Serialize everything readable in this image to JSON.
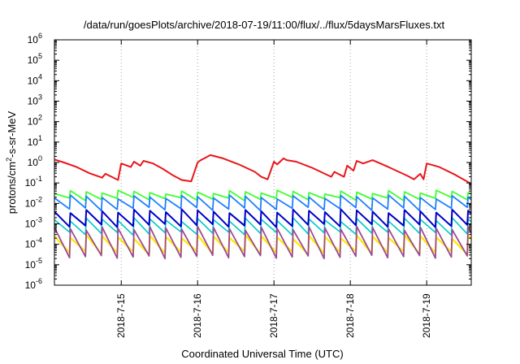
{
  "chart_data": {
    "type": "line",
    "title": "/data/run/goesPlots/archive/2018-07-19/11:00/flux/../flux/5daysMarsFluxes.txt",
    "xlabel": "Coordinated Universal Time (UTC)",
    "ylabel": {
      "prefix": "protons/cm",
      "sup": "2",
      "suffix": "-s-sr-MeV"
    },
    "yscale": "log",
    "ylim_exp": [
      -6,
      6
    ],
    "y_ticks": [
      {
        "base": "10",
        "exp": "-6"
      },
      {
        "base": "10",
        "exp": "-5"
      },
      {
        "base": "10",
        "exp": "-4"
      },
      {
        "base": "10",
        "exp": "-3"
      },
      {
        "base": "10",
        "exp": "-2"
      },
      {
        "base": "10",
        "exp": "-1"
      },
      {
        "base": "10",
        "exp": "0"
      },
      {
        "base": "10",
        "exp": "1"
      },
      {
        "base": "10",
        "exp": "2"
      },
      {
        "base": "10",
        "exp": "3"
      },
      {
        "base": "10",
        "exp": "4"
      },
      {
        "base": "10",
        "exp": "5"
      },
      {
        "base": "10",
        "exp": "6"
      }
    ],
    "x_range": [
      "2018-07-14 03:00",
      "2018-07-19 14:00"
    ],
    "x_ticks": [
      "2018-7-15",
      "2018-7-16",
      "2018-7-17",
      "2018-7-18",
      "2018-7-19"
    ],
    "x_tick_values": [
      "2018-07-15",
      "2018-07-16",
      "2018-07-17",
      "2018-07-18",
      "2018-07-19"
    ],
    "grid": "vertical dotted at x ticks",
    "series": [
      {
        "color": "#e8161b",
        "width": 2.0,
        "x": [
          "2018-07-14 03:00",
          "2018-07-14 06:00",
          "2018-07-14 10:00",
          "2018-07-14 14:00",
          "2018-07-14 18:00",
          "2018-07-14 19:00",
          "2018-07-14 23:00",
          "2018-07-15 00:00",
          "2018-07-15 03:00",
          "2018-07-15 04:00",
          "2018-07-15 06:00",
          "2018-07-15 07:00",
          "2018-07-15 10:00",
          "2018-07-15 13:00",
          "2018-07-15 16:00",
          "2018-07-15 19:00",
          "2018-07-15 22:00",
          "2018-07-16 00:00",
          "2018-07-16 01:00",
          "2018-07-16 04:00",
          "2018-07-16 08:00",
          "2018-07-16 13:00",
          "2018-07-16 18:00",
          "2018-07-16 20:00",
          "2018-07-16 22:00",
          "2018-07-17 00:00",
          "2018-07-17 01:00",
          "2018-07-17 03:00",
          "2018-07-17 04:00",
          "2018-07-17 07:00",
          "2018-07-17 12:00",
          "2018-07-17 18:00",
          "2018-07-17 19:00",
          "2018-07-17 22:00",
          "2018-07-17 23:00",
          "2018-07-18 01:00",
          "2018-07-18 02:00",
          "2018-07-18 04:00",
          "2018-07-18 07:00",
          "2018-07-18 12:00",
          "2018-07-18 18:00",
          "2018-07-18 20:00",
          "2018-07-18 22:00",
          "2018-07-18 23:00",
          "2018-07-19 00:00",
          "2018-07-19 04:00",
          "2018-07-19 09:00",
          "2018-07-19 14:00"
        ],
        "y": [
          1.4,
          1.0,
          0.6,
          0.3,
          0.18,
          0.28,
          0.14,
          0.9,
          0.6,
          1.1,
          0.7,
          1.2,
          0.9,
          0.5,
          0.25,
          0.14,
          0.12,
          1.0,
          1.3,
          2.3,
          1.6,
          0.8,
          0.35,
          0.2,
          0.15,
          1.1,
          0.8,
          1.6,
          1.3,
          1.1,
          0.55,
          0.2,
          0.35,
          0.2,
          0.7,
          0.4,
          1.2,
          0.9,
          1.3,
          0.6,
          0.22,
          0.15,
          0.28,
          0.15,
          0.9,
          0.6,
          0.25,
          0.09
        ]
      },
      {
        "color": "#3dff2e",
        "width": 1.8,
        "pattern": "sawtooth",
        "period_hours": 5,
        "peak": 0.038,
        "trough": 0.017
      },
      {
        "color": "#1f7fff",
        "width": 1.8,
        "pattern": "sawtooth",
        "period_hours": 5,
        "peak": 0.022,
        "trough": 0.0055
      },
      {
        "color": "#0000c8",
        "width": 2.0,
        "pattern": "sawtooth",
        "period_hours": 5,
        "peak": 0.0045,
        "trough": 0.00085
      },
      {
        "color": "#00c8c8",
        "width": 1.6,
        "pattern": "sawtooth",
        "period_hours": 5,
        "peak": 0.0017,
        "trough": 0.00035
      },
      {
        "color": "#ffe800",
        "width": 2.2,
        "pattern": "sawtooth",
        "period_hours": 5,
        "peak": 0.00025,
        "trough": 4e-05
      },
      {
        "color": "#9c4a93",
        "width": 1.8,
        "pattern": "sawtooth",
        "period_hours": 5,
        "peak": 0.00065,
        "trough": 2.5e-05
      }
    ]
  }
}
